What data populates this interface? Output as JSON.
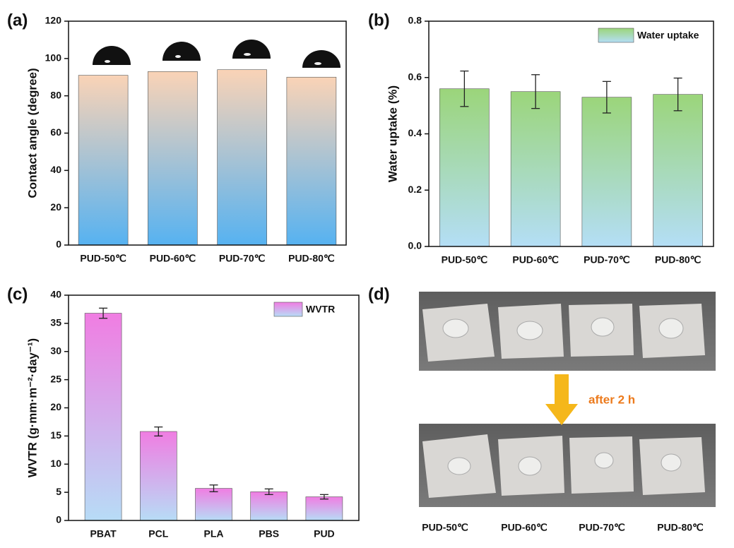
{
  "chart_data": [
    {
      "type": "bar",
      "panel": "(a)",
      "ylabel": "Contact angle (degree)",
      "categories": [
        "PUD-50℃",
        "PUD-60℃",
        "PUD-70℃",
        "PUD-80℃"
      ],
      "values": [
        91,
        93,
        94,
        90
      ],
      "ylim": [
        0,
        120
      ],
      "yticks": [
        0,
        20,
        40,
        60,
        80,
        100,
        120
      ],
      "colors": [
        "#fad3b6",
        "#56b2f1"
      ]
    },
    {
      "type": "bar",
      "panel": "(b)",
      "ylabel": "Water uptake (%)",
      "legend": "Water uptake",
      "categories": [
        "PUD-50℃",
        "PUD-60℃",
        "PUD-70℃",
        "PUD-80℃"
      ],
      "values": [
        0.56,
        0.55,
        0.53,
        0.54
      ],
      "errors": [
        0.063,
        0.06,
        0.056,
        0.058
      ],
      "ylim": [
        0,
        0.8
      ],
      "yticks": [
        {
          "value": 0,
          "label": "0.0"
        },
        0.2,
        0.4,
        0.6,
        0.8
      ],
      "colors": [
        "#9bd57a",
        "#b4def6"
      ]
    },
    {
      "type": "bar",
      "panel": "(c)",
      "ylabel": "WVTR (g·mm·m⁻²·day⁻¹)",
      "legend": "WVTR",
      "categories": [
        "PBAT",
        "PCL",
        "PLA",
        "PBS",
        "PUD"
      ],
      "values": [
        36.8,
        15.8,
        5.7,
        5.1,
        4.2
      ],
      "errors": [
        0.9,
        0.8,
        0.6,
        0.5,
        0.4
      ],
      "ylim": [
        0,
        40
      ],
      "yticks": [
        0,
        5,
        10,
        15,
        20,
        25,
        30,
        35,
        40
      ],
      "colors": [
        "#f07de2",
        "#b7dcf6"
      ]
    }
  ],
  "photo": {
    "panel": "(d)",
    "note": "after 2 h",
    "labels": [
      "PUD-50℃",
      "PUD-60℃",
      "PUD-70℃",
      "PUD-80℃"
    ]
  }
}
